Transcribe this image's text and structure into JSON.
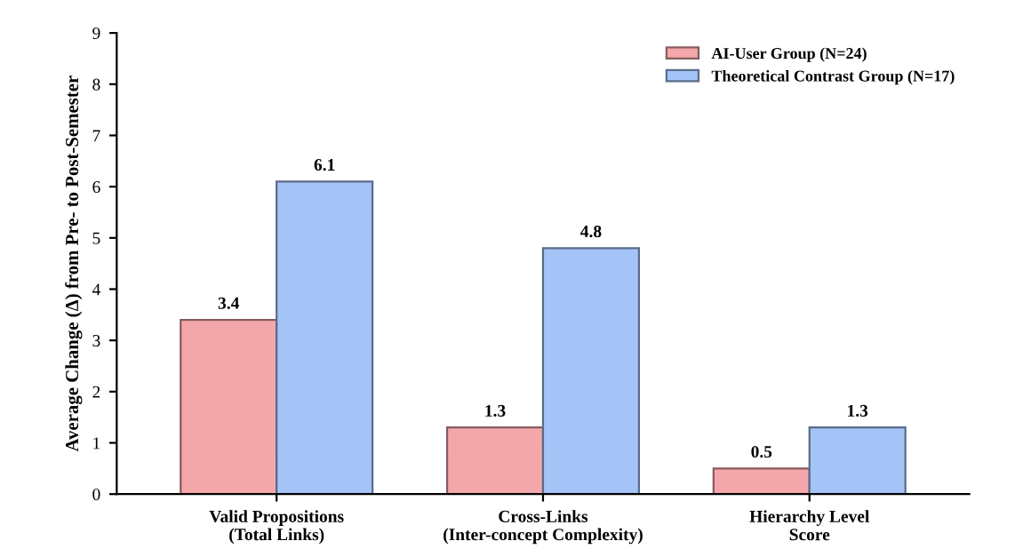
{
  "chart_data": {
    "type": "bar",
    "ylabel": "Average Change (Δ) from Pre- to Post-Semester",
    "categories": [
      "Valid Propositions\n(Total Links)",
      "Cross-Links\n(Inter-concept Complexity)",
      "Hierarchy Level\nScore"
    ],
    "series": [
      {
        "name": "AI-User Group (N=24)",
        "color": "#f4a7ab",
        "values": [
          3.4,
          1.3,
          0.5
        ]
      },
      {
        "name": "Theoretical Contrast Group (N=17)",
        "color": "#a4c4f8",
        "values": [
          6.1,
          4.8,
          1.3
        ]
      }
    ],
    "ylim": [
      0,
      9
    ],
    "yticks": [
      0,
      1,
      2,
      3,
      4,
      5,
      6,
      7,
      8,
      9
    ],
    "data_labels": true,
    "legend": "top right",
    "grid": false
  }
}
